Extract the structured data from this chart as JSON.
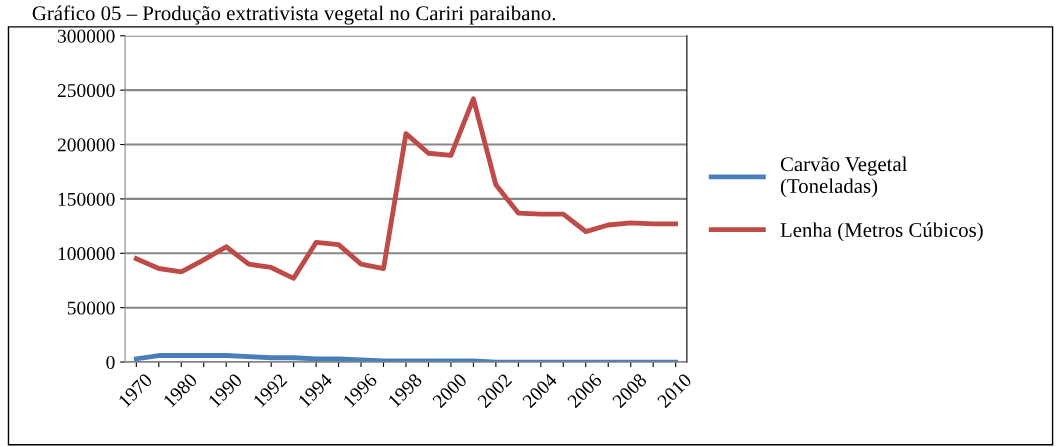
{
  "chart_data": {
    "type": "line",
    "title": "Gráfico 05 – Produção extrativista vegetal no Cariri paraibano.",
    "categories": [
      "1970",
      null,
      "1980",
      null,
      "1990",
      null,
      "1992",
      null,
      "1994",
      null,
      "1996",
      null,
      "1998",
      null,
      "2000",
      null,
      "2002",
      null,
      "2004",
      null,
      "2006",
      null,
      "2008",
      null,
      "2010"
    ],
    "series": [
      {
        "name": "Carvão Vegetal (Toneladas)",
        "color": "#4a7ebb",
        "values": [
          3000,
          6000,
          6000,
          6000,
          6000,
          5000,
          4000,
          4000,
          3000,
          3000,
          2000,
          1000,
          1000,
          1000,
          1000,
          1000,
          0,
          0,
          0,
          0,
          0,
          0,
          0,
          0,
          0
        ]
      },
      {
        "name": "Lenha (Metros Cúbicos)",
        "color": "#be4b48",
        "values": [
          95000,
          86000,
          83000,
          94000,
          106000,
          90000,
          87000,
          77000,
          110000,
          108000,
          90000,
          86000,
          210000,
          192000,
          190000,
          242000,
          163000,
          137000,
          136000,
          136000,
          120000,
          126000,
          128000,
          127000,
          127000
        ]
      }
    ],
    "ylim": [
      0,
      300000
    ],
    "yticks": [
      0,
      50000,
      100000,
      150000,
      200000,
      250000,
      300000
    ],
    "grid": "y",
    "legend": "right",
    "marker": "none",
    "line_style": "solid"
  }
}
